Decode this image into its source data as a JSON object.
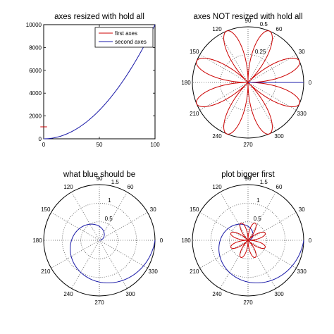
{
  "colors": {
    "red": "#cc0000",
    "blue": "#1a1aa8",
    "axis": "#000000",
    "grid": "#555555"
  },
  "chart_data": [
    {
      "id": "tl",
      "type": "line",
      "title": "axes resized with hold all",
      "xlim": [
        0,
        100
      ],
      "ylim": [
        0,
        10000
      ],
      "xticks": [
        0,
        50,
        100
      ],
      "yticks": [
        0,
        2000,
        4000,
        6000,
        8000,
        10000
      ],
      "grid": false,
      "legend": {
        "placement": "top-right",
        "entries": [
          "first axes",
          "second axes"
        ]
      },
      "series": [
        {
          "name": "first axes",
          "color": "red",
          "x": [
            -3,
            0,
            3
          ],
          "y": [
            1050,
            1050,
            1050
          ]
        },
        {
          "name": "second axes",
          "color": "blue",
          "function": "y = x^2",
          "x_range": [
            0,
            100
          ]
        }
      ]
    },
    {
      "id": "tr",
      "type": "polar",
      "title": "axes NOT resized with hold all",
      "rmax": 0.5,
      "rings": [
        0.25,
        0.5
      ],
      "ring_labels": [
        "0.25",
        "0.5"
      ],
      "angle_labels": [
        "0",
        "30",
        "60",
        "90",
        "120",
        "150",
        "180",
        "210",
        "240",
        "270",
        "300",
        "330"
      ],
      "grid": true,
      "series": [
        {
          "color": "red",
          "function": "r = 0.5 * abs(sin(4*theta))",
          "theta_range_deg": [
            0,
            360
          ]
        },
        {
          "color": "blue",
          "function": "theta = 0",
          "r_range": [
            0,
            0.5
          ]
        }
      ]
    },
    {
      "id": "bl",
      "type": "polar",
      "title": "what blue should be",
      "rmax": 1.5,
      "rings": [
        0.5,
        1,
        1.5
      ],
      "ring_labels": [
        "0.5",
        "1",
        "1.5"
      ],
      "angle_labels": [
        "0",
        "30",
        "60",
        "90",
        "120",
        "150",
        "180",
        "210",
        "240",
        "270",
        "300",
        "330"
      ],
      "grid": true,
      "series": [
        {
          "color": "blue",
          "function": "r = theta / (2*pi) * 1.5",
          "theta_range_deg": [
            0,
            360
          ]
        }
      ]
    },
    {
      "id": "br",
      "type": "polar",
      "title": "plot bigger first",
      "rmax": 1.5,
      "rings": [
        0.5,
        1,
        1.5
      ],
      "ring_labels": [
        "0.5",
        "1",
        "1.5"
      ],
      "angle_labels": [
        "0",
        "30",
        "60",
        "90",
        "120",
        "150",
        "180",
        "210",
        "240",
        "270",
        "300",
        "330"
      ],
      "grid": true,
      "series": [
        {
          "color": "blue",
          "function": "r = theta / (2*pi) * 1.5",
          "theta_range_deg": [
            0,
            360
          ]
        },
        {
          "color": "red",
          "function": "r = 0.5 * abs(sin(4*theta))",
          "theta_range_deg": [
            0,
            360
          ]
        }
      ]
    }
  ]
}
